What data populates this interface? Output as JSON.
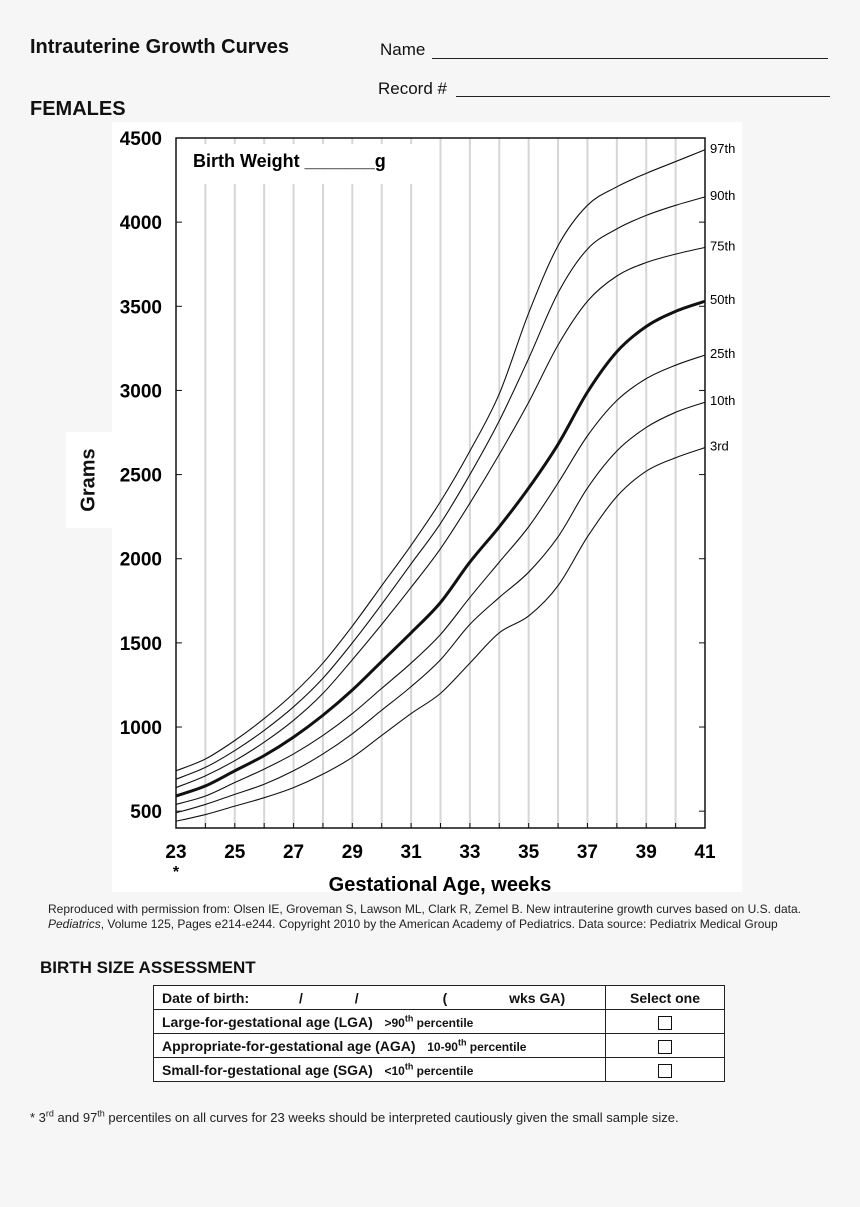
{
  "header": {
    "title": "Intrauterine Growth Curves",
    "name_label": "Name",
    "record_label": "Record #",
    "section": "FEMALES"
  },
  "chart_data": {
    "type": "line",
    "xlabel": "Gestational Age, weeks",
    "ylabel": "Grams",
    "xlim": [
      23,
      41
    ],
    "ylim": [
      400,
      4500
    ],
    "x_ticks": [
      23,
      25,
      27,
      29,
      31,
      33,
      35,
      37,
      39,
      41
    ],
    "y_ticks": [
      500,
      1000,
      1500,
      2000,
      2500,
      3000,
      3500,
      4000,
      4500
    ],
    "x_tick_footnote": "*",
    "box_label": "Birth Weight _______g",
    "grid": true,
    "x": [
      23,
      24,
      25,
      26,
      27,
      28,
      29,
      30,
      31,
      32,
      33,
      34,
      35,
      36,
      37,
      38,
      39,
      40,
      41
    ],
    "series": [
      {
        "name": "97th",
        "values": [
          740,
          810,
          920,
          1050,
          1200,
          1380,
          1600,
          1840,
          2080,
          2340,
          2640,
          2980,
          3460,
          3860,
          4100,
          4210,
          4290,
          4360,
          4430
        ],
        "bold": false
      },
      {
        "name": "90th",
        "values": [
          690,
          760,
          860,
          980,
          1120,
          1290,
          1500,
          1730,
          1970,
          2210,
          2500,
          2820,
          3190,
          3580,
          3840,
          3960,
          4040,
          4100,
          4150
        ],
        "bold": false
      },
      {
        "name": "75th",
        "values": [
          640,
          710,
          800,
          910,
          1040,
          1200,
          1400,
          1610,
          1830,
          2060,
          2330,
          2620,
          2930,
          3270,
          3530,
          3680,
          3760,
          3810,
          3850
        ],
        "bold": false
      },
      {
        "name": "50th",
        "values": [
          590,
          650,
          740,
          830,
          940,
          1070,
          1220,
          1390,
          1560,
          1740,
          1980,
          2190,
          2420,
          2680,
          2990,
          3230,
          3380,
          3470,
          3530
        ],
        "bold": true
      },
      {
        "name": "25th",
        "values": [
          540,
          590,
          670,
          750,
          840,
          950,
          1080,
          1230,
          1380,
          1550,
          1770,
          1980,
          2190,
          2450,
          2730,
          2940,
          3070,
          3150,
          3210
        ],
        "bold": false
      },
      {
        "name": "10th",
        "values": [
          490,
          540,
          600,
          660,
          740,
          840,
          960,
          1100,
          1240,
          1400,
          1610,
          1770,
          1920,
          2130,
          2420,
          2640,
          2780,
          2870,
          2930
        ],
        "bold": false
      },
      {
        "name": "3rd",
        "values": [
          440,
          480,
          530,
          580,
          640,
          720,
          820,
          950,
          1080,
          1200,
          1380,
          1560,
          1660,
          1840,
          2130,
          2370,
          2520,
          2600,
          2660
        ],
        "bold": false
      }
    ]
  },
  "credit": {
    "line1": "Reproduced with permission from: Olsen IE, Groveman S, Lawson ML, Clark R, Zemel B. New intrauterine growth curves based on U.S. data.",
    "journal": "Pediatrics",
    "line2_rest": ", Volume 125, Pages e214-e244. Copyright 2010 by the American Academy of Pediatrics.  Data source: Pediatrix Medical Group"
  },
  "assessment": {
    "title": "BIRTH SIZE ASSESSMENT",
    "dob_label": "Date of birth:",
    "dob_sep1": "/",
    "dob_sep2": "/",
    "ga_open": "(",
    "ga_suffix": "wks GA)",
    "select_header": "Select one",
    "rows": [
      {
        "label": "Large-for-gestational age (LGA)",
        "pre": ">90",
        "sup": "th",
        "post": " percentile"
      },
      {
        "label": "Appropriate-for-gestational age (AGA)",
        "pre": "10-90",
        "sup": "th",
        "post": " percentile"
      },
      {
        "label": "Small-for-gestational age (SGA)",
        "pre": "<10",
        "sup": "th",
        "post": " percentile"
      }
    ]
  },
  "footnote": {
    "star": "* 3",
    "sup1": "rd",
    "mid": " and 97",
    "sup2": "th",
    "rest": " percentiles on all curves for 23 weeks should be interpreted cautiously given the small sample size."
  }
}
